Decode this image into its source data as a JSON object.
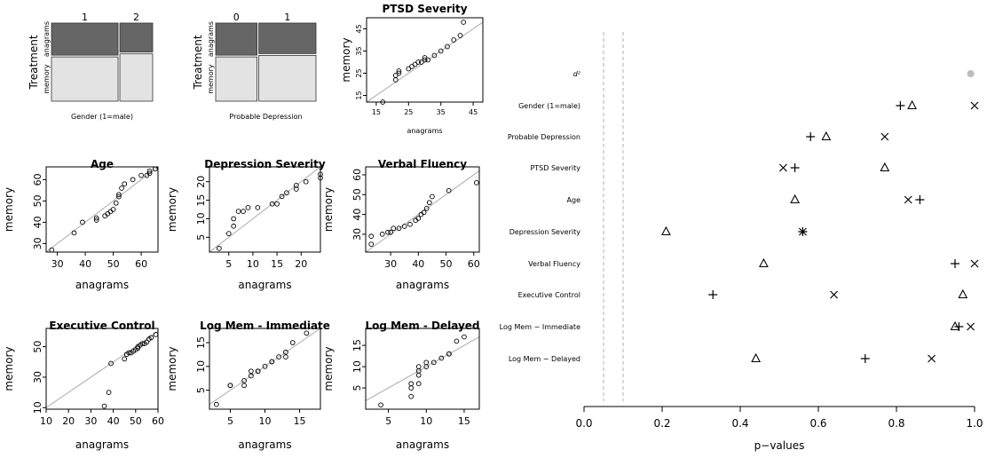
{
  "mosaics": [
    {
      "xlabel": "Gender (1=male)",
      "ylabel": "Treatment",
      "categories": [
        "1",
        "2"
      ],
      "rows": [
        "anagrams",
        "memory"
      ],
      "column_fractions": [
        0.67,
        0.33
      ],
      "top_fractions": [
        0.42,
        0.38
      ],
      "colors": {
        "top": "#666666",
        "bottom": "#e3e3e3"
      }
    },
    {
      "xlabel": "Probable Depression",
      "ylabel": "Treatment",
      "categories": [
        "0",
        "1"
      ],
      "rows": [
        "anagrams",
        "memory"
      ],
      "column_fractions": [
        0.42,
        0.58
      ],
      "top_fractions": [
        0.42,
        0.4
      ],
      "colors": {
        "top": "#666666",
        "bottom": "#e3e3e3"
      }
    }
  ],
  "qqplots": [
    {
      "title": "PTSD Severity",
      "xlabel": "anagrams",
      "ylabel": "memory",
      "xlim": [
        12,
        48
      ],
      "ylim": [
        12,
        50
      ],
      "xticks": [
        15,
        25,
        35,
        45
      ],
      "yticks": [
        15,
        25,
        35,
        45
      ],
      "points": [
        [
          17,
          12
        ],
        [
          21,
          22
        ],
        [
          21,
          24
        ],
        [
          22,
          25
        ],
        [
          22,
          26
        ],
        [
          25,
          27
        ],
        [
          26,
          28
        ],
        [
          27,
          29
        ],
        [
          28,
          30
        ],
        [
          29,
          30
        ],
        [
          30,
          31
        ],
        [
          31,
          31
        ],
        [
          30,
          32
        ],
        [
          33,
          33
        ],
        [
          35,
          35
        ],
        [
          37,
          37
        ],
        [
          39,
          40
        ],
        [
          41,
          42
        ],
        [
          42,
          48
        ]
      ]
    },
    {
      "title": "Age",
      "xlabel": "anagrams",
      "ylabel": "memory",
      "xlim": [
        26,
        66
      ],
      "ylim": [
        26,
        66
      ],
      "xticks": [
        30,
        40,
        50,
        60
      ],
      "yticks": [
        30,
        40,
        50,
        60
      ],
      "points": [
        [
          28,
          27
        ],
        [
          36,
          35
        ],
        [
          39,
          40
        ],
        [
          44,
          41
        ],
        [
          44,
          42
        ],
        [
          47,
          43
        ],
        [
          48,
          44
        ],
        [
          49,
          45
        ],
        [
          50,
          46
        ],
        [
          51,
          49
        ],
        [
          52,
          52
        ],
        [
          52,
          53
        ],
        [
          53,
          56
        ],
        [
          54,
          58
        ],
        [
          57,
          60
        ],
        [
          60,
          62
        ],
        [
          62,
          62
        ],
        [
          63,
          63
        ],
        [
          63,
          64
        ],
        [
          65,
          65
        ]
      ]
    },
    {
      "title": "Depression Severity",
      "xlabel": "anagrams",
      "ylabel": "memory",
      "xlim": [
        1,
        24
      ],
      "ylim": [
        1,
        24
      ],
      "xticks": [
        5,
        10,
        15,
        20
      ],
      "yticks": [
        5,
        10,
        15,
        20
      ],
      "points": [
        [
          3,
          2
        ],
        [
          5,
          6
        ],
        [
          6,
          8
        ],
        [
          6,
          10
        ],
        [
          7,
          12
        ],
        [
          8,
          12
        ],
        [
          9,
          13
        ],
        [
          11,
          13
        ],
        [
          14,
          14
        ],
        [
          15,
          14
        ],
        [
          16,
          16
        ],
        [
          17,
          17
        ],
        [
          19,
          18
        ],
        [
          19,
          19
        ],
        [
          21,
          20
        ],
        [
          24,
          21
        ],
        [
          24,
          22
        ]
      ]
    },
    {
      "title": "Verbal Fluency",
      "xlabel": "anagrams",
      "ylabel": "memory",
      "xlim": [
        21,
        62
      ],
      "ylim": [
        21,
        64
      ],
      "xticks": [
        30,
        40,
        50,
        60
      ],
      "yticks": [
        30,
        40,
        50,
        60
      ],
      "points": [
        [
          23,
          25
        ],
        [
          23,
          29
        ],
        [
          27,
          30
        ],
        [
          29,
          31
        ],
        [
          30,
          31
        ],
        [
          31,
          33
        ],
        [
          33,
          33
        ],
        [
          35,
          34
        ],
        [
          37,
          35
        ],
        [
          39,
          37
        ],
        [
          40,
          38
        ],
        [
          41,
          40
        ],
        [
          42,
          41
        ],
        [
          43,
          43
        ],
        [
          44,
          46
        ],
        [
          45,
          49
        ],
        [
          51,
          52
        ],
        [
          61,
          56
        ]
      ]
    },
    {
      "title": "Executive Control",
      "xlabel": "anagrams",
      "ylabel": "memory",
      "xlim": [
        10,
        60
      ],
      "ylim": [
        9,
        62
      ],
      "xticks": [
        10,
        20,
        30,
        40,
        50,
        60
      ],
      "yticks": [
        10,
        30,
        50
      ],
      "points": [
        [
          36,
          11
        ],
        [
          38,
          20
        ],
        [
          39,
          39
        ],
        [
          45,
          42
        ],
        [
          46,
          45
        ],
        [
          47,
          46
        ],
        [
          48,
          46
        ],
        [
          49,
          47
        ],
        [
          50,
          48
        ],
        [
          51,
          49
        ],
        [
          51,
          50
        ],
        [
          52,
          51
        ],
        [
          53,
          52
        ],
        [
          54,
          52
        ],
        [
          55,
          53
        ],
        [
          56,
          55
        ],
        [
          57,
          56
        ],
        [
          59,
          58
        ]
      ]
    },
    {
      "title": "Log Mem - Immediate",
      "xlabel": "anagrams",
      "ylabel": "memory",
      "xlim": [
        2,
        18
      ],
      "ylim": [
        1,
        18
      ],
      "xticks": [
        5,
        10,
        15
      ],
      "yticks": [
        5,
        10,
        15
      ],
      "points": [
        [
          3,
          2
        ],
        [
          5,
          6
        ],
        [
          5,
          6
        ],
        [
          7,
          6
        ],
        [
          7,
          7
        ],
        [
          8,
          8
        ],
        [
          8,
          9
        ],
        [
          9,
          9
        ],
        [
          9,
          9
        ],
        [
          10,
          10
        ],
        [
          11,
          11
        ],
        [
          11,
          11
        ],
        [
          12,
          12
        ],
        [
          13,
          12
        ],
        [
          13,
          13
        ],
        [
          14,
          15
        ],
        [
          16,
          17
        ]
      ]
    },
    {
      "title": "Log Mem - Delayed",
      "xlabel": "anagrams",
      "ylabel": "memory",
      "xlim": [
        2,
        17
      ],
      "ylim": [
        0,
        19
      ],
      "xticks": [
        5,
        10,
        15
      ],
      "yticks": [
        5,
        10,
        15
      ],
      "points": [
        [
          4,
          1
        ],
        [
          8,
          3
        ],
        [
          8,
          5
        ],
        [
          8,
          6
        ],
        [
          9,
          6
        ],
        [
          9,
          8
        ],
        [
          9,
          9
        ],
        [
          9,
          10
        ],
        [
          10,
          10
        ],
        [
          10,
          11
        ],
        [
          11,
          11
        ],
        [
          12,
          12
        ],
        [
          13,
          13
        ],
        [
          13,
          13
        ],
        [
          14,
          16
        ],
        [
          15,
          17
        ]
      ]
    }
  ],
  "chart_data": {
    "type": "scatter",
    "xlabel": "p−values",
    "xlim": [
      0,
      1
    ],
    "xticks": [
      "0.0",
      "0.2",
      "0.4",
      "0.6",
      "0.8",
      "1.0"
    ],
    "reference_lines": [
      0.05,
      0.1
    ],
    "categories": [
      "d²",
      "Gender (1=male)",
      "Probable Depression",
      "PTSD Severity",
      "Age",
      "Depression Severity",
      "Verbal Fluency",
      "Executive Control",
      "Log Mem − Immediate",
      "Log Mem − Delayed"
    ],
    "series": [
      {
        "marker": "dot",
        "values": [
          0.99,
          null,
          null,
          null,
          null,
          null,
          null,
          null,
          null,
          null
        ]
      },
      {
        "marker": "plus",
        "values": [
          null,
          0.81,
          0.58,
          0.54,
          0.86,
          0.56,
          0.95,
          0.33,
          0.96,
          0.72
        ]
      },
      {
        "marker": "triangle",
        "values": [
          null,
          0.84,
          0.62,
          0.77,
          0.54,
          0.21,
          0.46,
          0.97,
          0.95,
          0.44
        ]
      },
      {
        "marker": "cross",
        "values": [
          null,
          1.0,
          0.77,
          0.51,
          0.83,
          0.56,
          1.0,
          0.64,
          0.99,
          0.89
        ]
      }
    ],
    "colors": {
      "dot": "#bdbdbd",
      "marker": "#000000",
      "reference": "#b0b0b0"
    }
  }
}
